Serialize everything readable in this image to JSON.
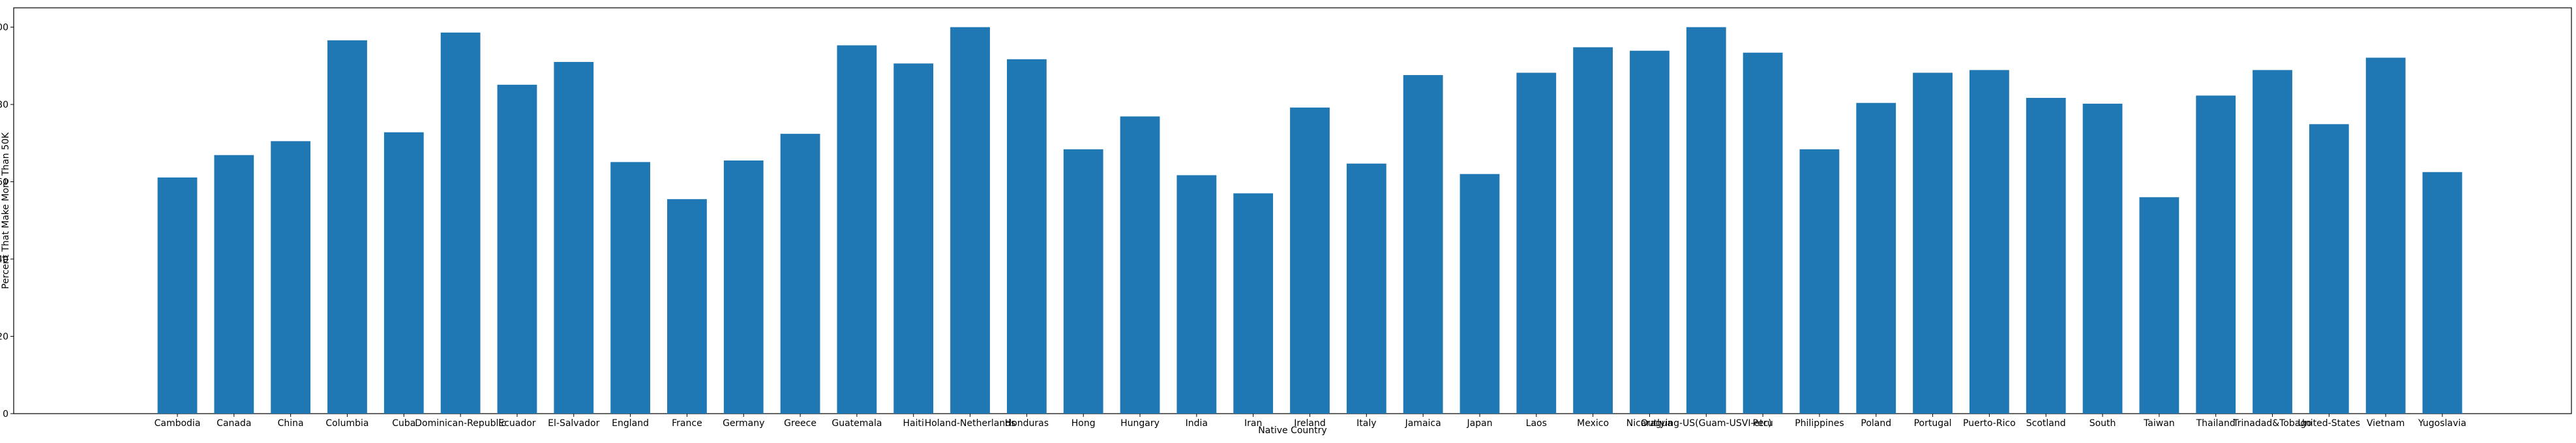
{
  "chart_data": {
    "type": "bar",
    "title": "",
    "xlabel": "Native Country",
    "ylabel": "Percent That Make More Than 50K",
    "ylim": [
      0,
      105
    ],
    "yticks": [
      0,
      20,
      40,
      60,
      80,
      100
    ],
    "grid": false,
    "bar_color": "#1f77b4",
    "categories": [
      "Cambodia",
      "Canada",
      "China",
      "Columbia",
      "Cuba",
      "Dominican-Republic",
      "Ecuador",
      "El-Salvador",
      "England",
      "France",
      "Germany",
      "Greece",
      "Guatemala",
      "Haiti",
      "Holand-Netherlands",
      "Honduras",
      "Hong",
      "Hungary",
      "India",
      "Iran",
      "Ireland",
      "Italy",
      "Jamaica",
      "Japan",
      "Laos",
      "Mexico",
      "Nicaragua",
      "Outlying-US(Guam-USVI-etc)",
      "Peru",
      "Philippines",
      "Poland",
      "Portugal",
      "Puerto-Rico",
      "Scotland",
      "South",
      "Taiwan",
      "Thailand",
      "Trinadad&Tobago",
      "United-States",
      "Vietnam",
      "Yugoslavia"
    ],
    "values": [
      61.1,
      66.9,
      70.5,
      96.6,
      72.8,
      98.6,
      85.1,
      91.0,
      65.1,
      55.5,
      65.5,
      72.4,
      95.3,
      90.6,
      100.0,
      91.7,
      68.4,
      76.9,
      61.7,
      57.0,
      79.2,
      64.7,
      87.6,
      62.0,
      88.2,
      94.8,
      93.9,
      100.0,
      93.4,
      68.4,
      80.4,
      88.2,
      88.9,
      81.7,
      80.2,
      56.0,
      82.3,
      88.9,
      74.9,
      92.1,
      62.5
    ]
  }
}
